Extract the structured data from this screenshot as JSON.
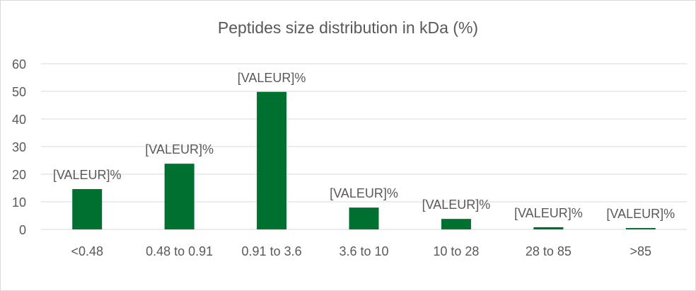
{
  "chart_data": {
    "type": "bar",
    "title": "Peptides size distribution in kDa (%)",
    "xlabel": "",
    "ylabel": "",
    "ylim": [
      0,
      60
    ],
    "yticks": [
      "0",
      "10",
      "20",
      "30",
      "40",
      "50",
      "60"
    ],
    "grid": true,
    "legend": "none",
    "categories": [
      "<0.48",
      "0.48 to 0.91",
      "0.91 to 3.6",
      "3.6 to 10",
      "10 to 28",
      "28 to 85",
      ">85"
    ],
    "values": [
      14.6,
      23.8,
      49.8,
      7.9,
      3.8,
      0.8,
      0.5
    ],
    "data_labels": [
      "[VALEUR]%",
      "[VALEUR]%",
      "[VALEUR]%",
      "[VALEUR]%",
      "[VALEUR]%",
      "[VALEUR]%",
      "[VALEUR]%"
    ],
    "bar_color": "#007030"
  }
}
